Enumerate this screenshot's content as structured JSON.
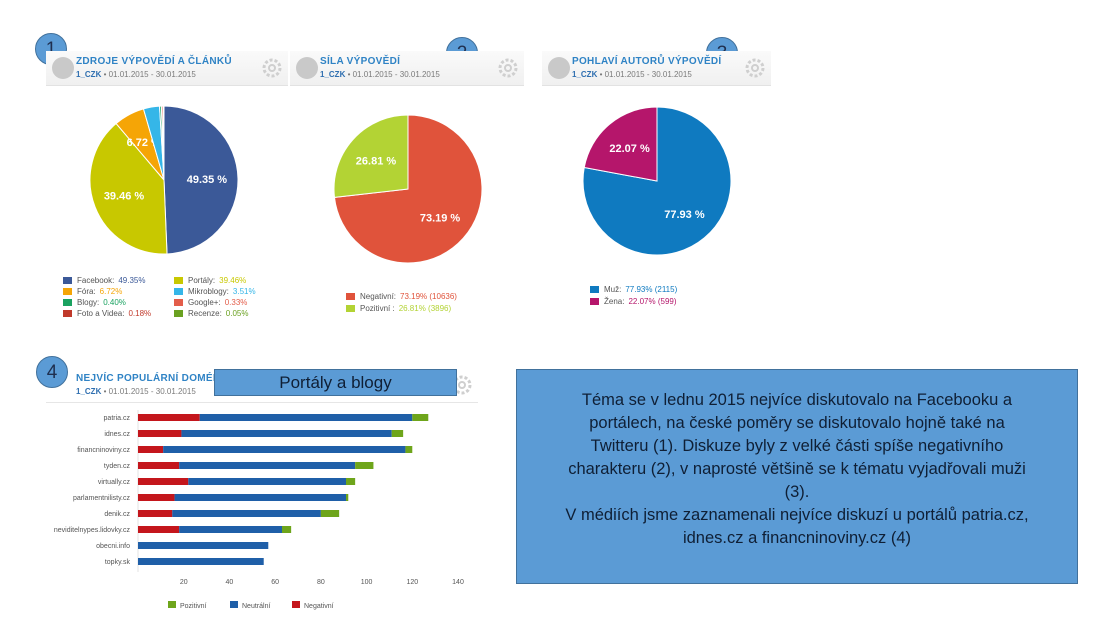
{
  "badges": [
    "1",
    "2",
    "3",
    "4"
  ],
  "panels": [
    {
      "title": "ZDROJE VÝPOVĚDÍ A ČLÁNKŮ",
      "tag": "1_CZK",
      "dates": "01.01.2015 - 30.01.2015"
    },
    {
      "title": "SÍLA VÝPOVĚDÍ",
      "tag": "1_CZK",
      "dates": "01.01.2015 - 30.01.2015"
    },
    {
      "title": "POHLAVÍ AUTORŮ VÝPOVĚDÍ",
      "tag": "1_CZK",
      "dates": "01.01.2015 - 30.01.2015"
    },
    {
      "title": "NEJVÍC POPULÁRNÍ DOMÉNY",
      "tag": "1_CZK",
      "dates": "01.01.2015 - 30.01.2015"
    }
  ],
  "legend1": [
    {
      "label": "Facebook:",
      "value": "49.35%",
      "color": "#3b5998"
    },
    {
      "label": "Fóra:",
      "value": "6.72%",
      "color": "#f5a506"
    },
    {
      "label": "Blogy:",
      "value": "0.40%",
      "color": "#1aa260"
    },
    {
      "label": "Foto a Videa:",
      "value": "0.18%",
      "color": "#c0392b"
    },
    {
      "label": "Portály:",
      "value": "39.46%",
      "color": "#c8c800"
    },
    {
      "label": "Mikroblogy:",
      "value": "3.51%",
      "color": "#35b6e8"
    },
    {
      "label": "Google+:",
      "value": "0.33%",
      "color": "#e35d4a"
    },
    {
      "label": "Recenze:",
      "value": "0.05%",
      "color": "#6aa121"
    }
  ],
  "legend2": [
    {
      "label": "Negativní:",
      "value": "73.19% (10636)",
      "color": "#e0533b"
    },
    {
      "label": "Pozitivní :",
      "value": "26.81% (3896)",
      "color": "#b3d334"
    }
  ],
  "legend3": [
    {
      "label": "Muž:",
      "value": "77.93% (2115)",
      "color": "#0f7ac0"
    },
    {
      "label": "Žena:",
      "value": "22.07% (599)",
      "color": "#b5166b"
    }
  ],
  "callout": "Portály a blogy",
  "summary": {
    "lines": [
      "Téma se v lednu 2015 nejvíce diskutovalo na Facebooku a",
      "portálech, na české poměry se diskutovalo hojně také na",
      "Twitteru (1). Diskuze byly z velké části spíše negativního",
      "charakteru (2), v naprosté většině se k tématu vyjadřovali muži",
      "(3).",
      "V médiích jsme zaznamenali nejvíce diskuzí u portálů patria.cz,",
      "idnes.cz a financninoviny.cz (4)"
    ]
  },
  "chart_data": [
    {
      "type": "pie",
      "title": "ZDROJE VÝPOVĚDÍ A ČLÁNKŮ",
      "slices": [
        {
          "name": "Facebook",
          "value": 49.35,
          "color": "#3b5998",
          "label": "49.35 %"
        },
        {
          "name": "Portály",
          "value": 39.46,
          "color": "#c8c800",
          "label": "39.46 %"
        },
        {
          "name": "Fóra",
          "value": 6.72,
          "color": "#f5a506",
          "label": "6.72 %"
        },
        {
          "name": "Mikroblogy",
          "value": 3.51,
          "color": "#35b6e8",
          "label": ""
        },
        {
          "name": "Blogy",
          "value": 0.4,
          "color": "#1aa260",
          "label": ""
        },
        {
          "name": "Google+",
          "value": 0.33,
          "color": "#e35d4a",
          "label": ""
        },
        {
          "name": "Foto a Videa",
          "value": 0.18,
          "color": "#c0392b",
          "label": ""
        },
        {
          "name": "Recenze",
          "value": 0.05,
          "color": "#6aa121",
          "label": ""
        }
      ]
    },
    {
      "type": "pie",
      "title": "SÍLA VÝPOVĚDÍ",
      "slices": [
        {
          "name": "Negativní",
          "value": 73.19,
          "color": "#e0533b",
          "label": "73.19 %"
        },
        {
          "name": "Pozitivní",
          "value": 26.81,
          "color": "#b3d334",
          "label": "26.81 %"
        }
      ]
    },
    {
      "type": "pie",
      "title": "POHLAVÍ AUTORŮ VÝPOVĚDÍ",
      "slices": [
        {
          "name": "Muž",
          "value": 77.93,
          "color": "#0f7ac0",
          "label": "77.93 %"
        },
        {
          "name": "Žena",
          "value": 22.07,
          "color": "#b5166b",
          "label": "22.07 %"
        }
      ]
    },
    {
      "type": "bar",
      "orientation": "horizontal",
      "stacked": true,
      "title": "NEJVÍC POPULÁRNÍ DOMÉNY",
      "categories": [
        "patria.cz",
        "idnes.cz",
        "financninoviny.cz",
        "tyden.cz",
        "virtually.cz",
        "parlamentnilisty.cz",
        "denik.cz",
        "neviditelnypes.lidovky.cz",
        "obecni.info",
        "topky.sk"
      ],
      "series": [
        {
          "name": "Negativní",
          "color": "#c4161c",
          "values": [
            27,
            19,
            11,
            18,
            22,
            16,
            15,
            18,
            0,
            0
          ]
        },
        {
          "name": "Neutrální",
          "color": "#1f5fa8",
          "values": [
            93,
            92,
            106,
            77,
            69,
            75,
            65,
            45,
            57,
            55
          ]
        },
        {
          "name": "Pozitivní",
          "color": "#6ea51b",
          "values": [
            7,
            5,
            3,
            8,
            4,
            1,
            8,
            4,
            0,
            0
          ]
        }
      ],
      "xticks": [
        "20",
        "40",
        "60",
        "80",
        "100",
        "120",
        "140"
      ],
      "xlim": [
        0,
        140
      ],
      "legend": [
        "Pozitivní",
        "Neutrální",
        "Negativní"
      ],
      "legend_position": "bottom"
    }
  ]
}
